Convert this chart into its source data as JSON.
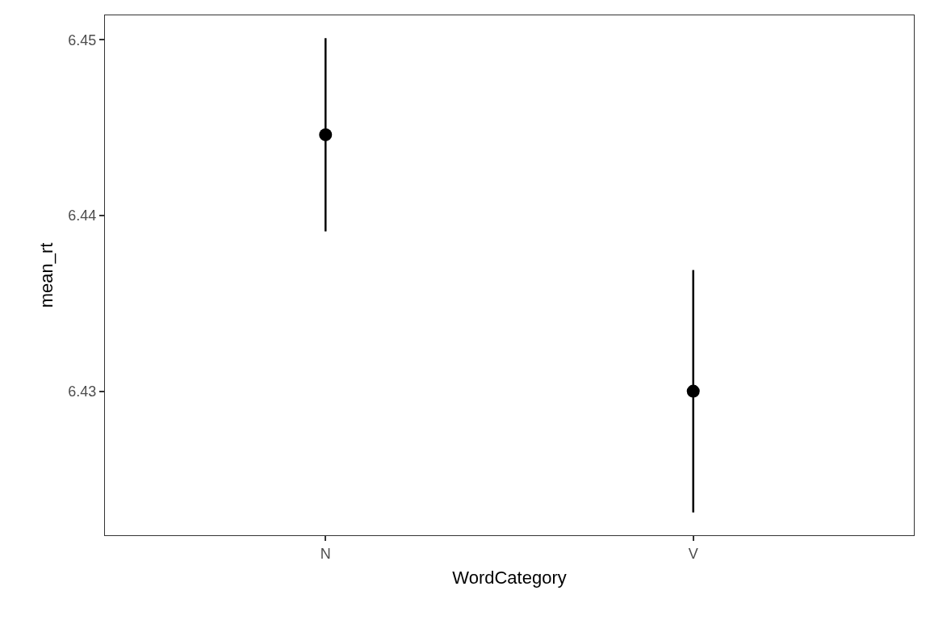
{
  "chart_data": {
    "type": "scatter",
    "xlabel": "WordCategory",
    "ylabel": "mean_rt",
    "categories": [
      "N",
      "V"
    ],
    "values": [
      6.4446,
      6.43
    ],
    "errors": [
      0.0055,
      0.0069
    ],
    "color": "#000000",
    "marker": "circle",
    "ylim": [
      6.4218,
      6.4514
    ],
    "yticks": [
      6.43,
      6.44,
      6.45
    ]
  }
}
